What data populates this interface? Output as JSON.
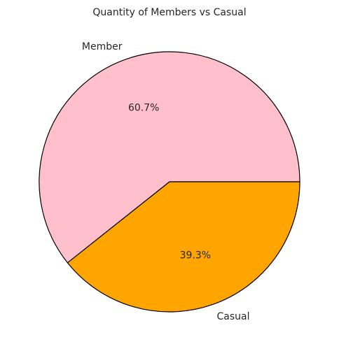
{
  "chart_data": {
    "type": "pie",
    "title": "Quantity of Members vs Casual",
    "slices": [
      {
        "label": "Member",
        "value": 60.7,
        "pct_label": "60.7%",
        "color": "#FFC0CB"
      },
      {
        "label": "Casual",
        "value": 39.3,
        "pct_label": "39.3%",
        "color": "#FFA500"
      }
    ],
    "edge_color": "#000000",
    "start_angle_deg": 0,
    "direction": "counterclockwise"
  }
}
